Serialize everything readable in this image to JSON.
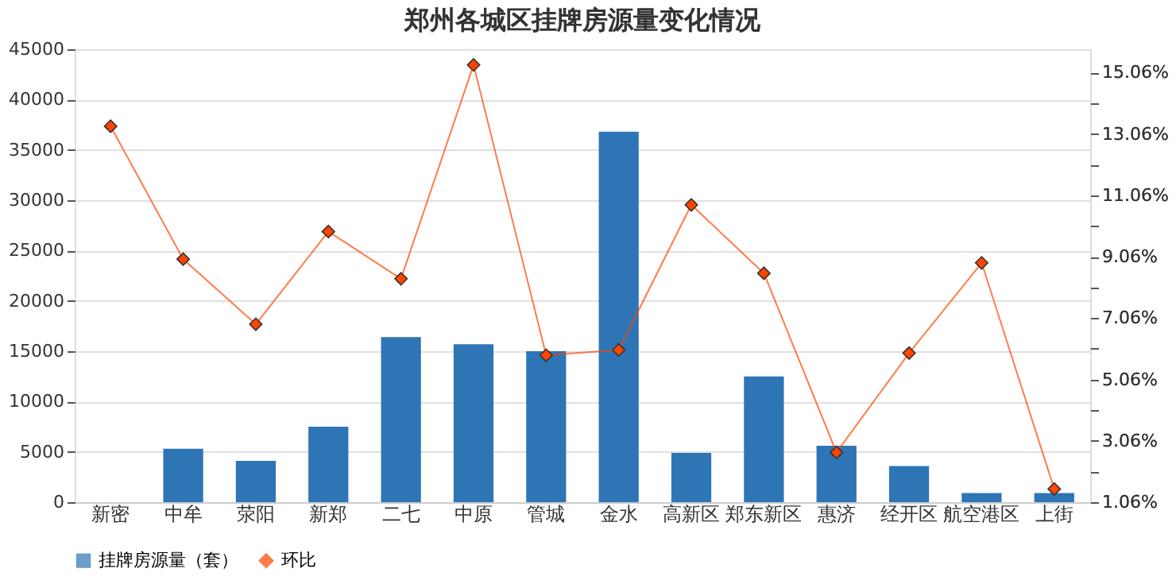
{
  "chart_data": {
    "type": "bar",
    "title": "郑州各城区挂牌房源量变化情况",
    "categories": [
      "新密",
      "中牟",
      "荥阳",
      "新郑",
      "二七",
      "中原",
      "管城",
      "金水",
      "高新区",
      "郑东新区",
      "惠济",
      "经开区",
      "航空港区",
      "上街"
    ],
    "series": [
      {
        "name": "挂牌房源量（套）",
        "color": "#2e75b6",
        "values": [
          null,
          5300,
          4100,
          7500,
          16400,
          15700,
          15000,
          36800,
          4900,
          12500,
          5600,
          3600,
          900,
          900
        ]
      },
      {
        "name": "环比",
        "type": "line",
        "axis": "y2",
        "color": "#ff4500",
        "marker": "diamond",
        "values": [
          13.31,
          8.98,
          6.86,
          9.88,
          8.34,
          15.31,
          5.85,
          6.02,
          10.75,
          8.52,
          2.68,
          5.92,
          8.86,
          1.49
        ]
      }
    ],
    "ylim": [
      0,
      45000
    ],
    "yticks": [
      0,
      5000,
      10000,
      15000,
      20000,
      25000,
      30000,
      35000,
      40000,
      45000
    ],
    "y2lim": [
      1.06,
      15.82
    ],
    "y2ticks": [
      {
        "value": 1.06,
        "label": "1.06%"
      },
      {
        "value": 2.06,
        "label": null
      },
      {
        "value": 3.06,
        "label": "3.06%"
      },
      {
        "value": 4.06,
        "label": null
      },
      {
        "value": 5.06,
        "label": "5.06%"
      },
      {
        "value": 6.06,
        "label": null
      },
      {
        "value": 7.06,
        "label": "7.06%"
      },
      {
        "value": 8.06,
        "label": null
      },
      {
        "value": 9.06,
        "label": "9.06%"
      },
      {
        "value": 10.06,
        "label": null
      },
      {
        "value": 11.06,
        "label": "11.06%"
      },
      {
        "value": 12.06,
        "label": null
      },
      {
        "value": 13.06,
        "label": "13.06%"
      },
      {
        "value": 14.06,
        "label": null
      },
      {
        "value": 15.06,
        "label": "15.06%"
      }
    ],
    "grid": "y",
    "legend": "bottom"
  }
}
